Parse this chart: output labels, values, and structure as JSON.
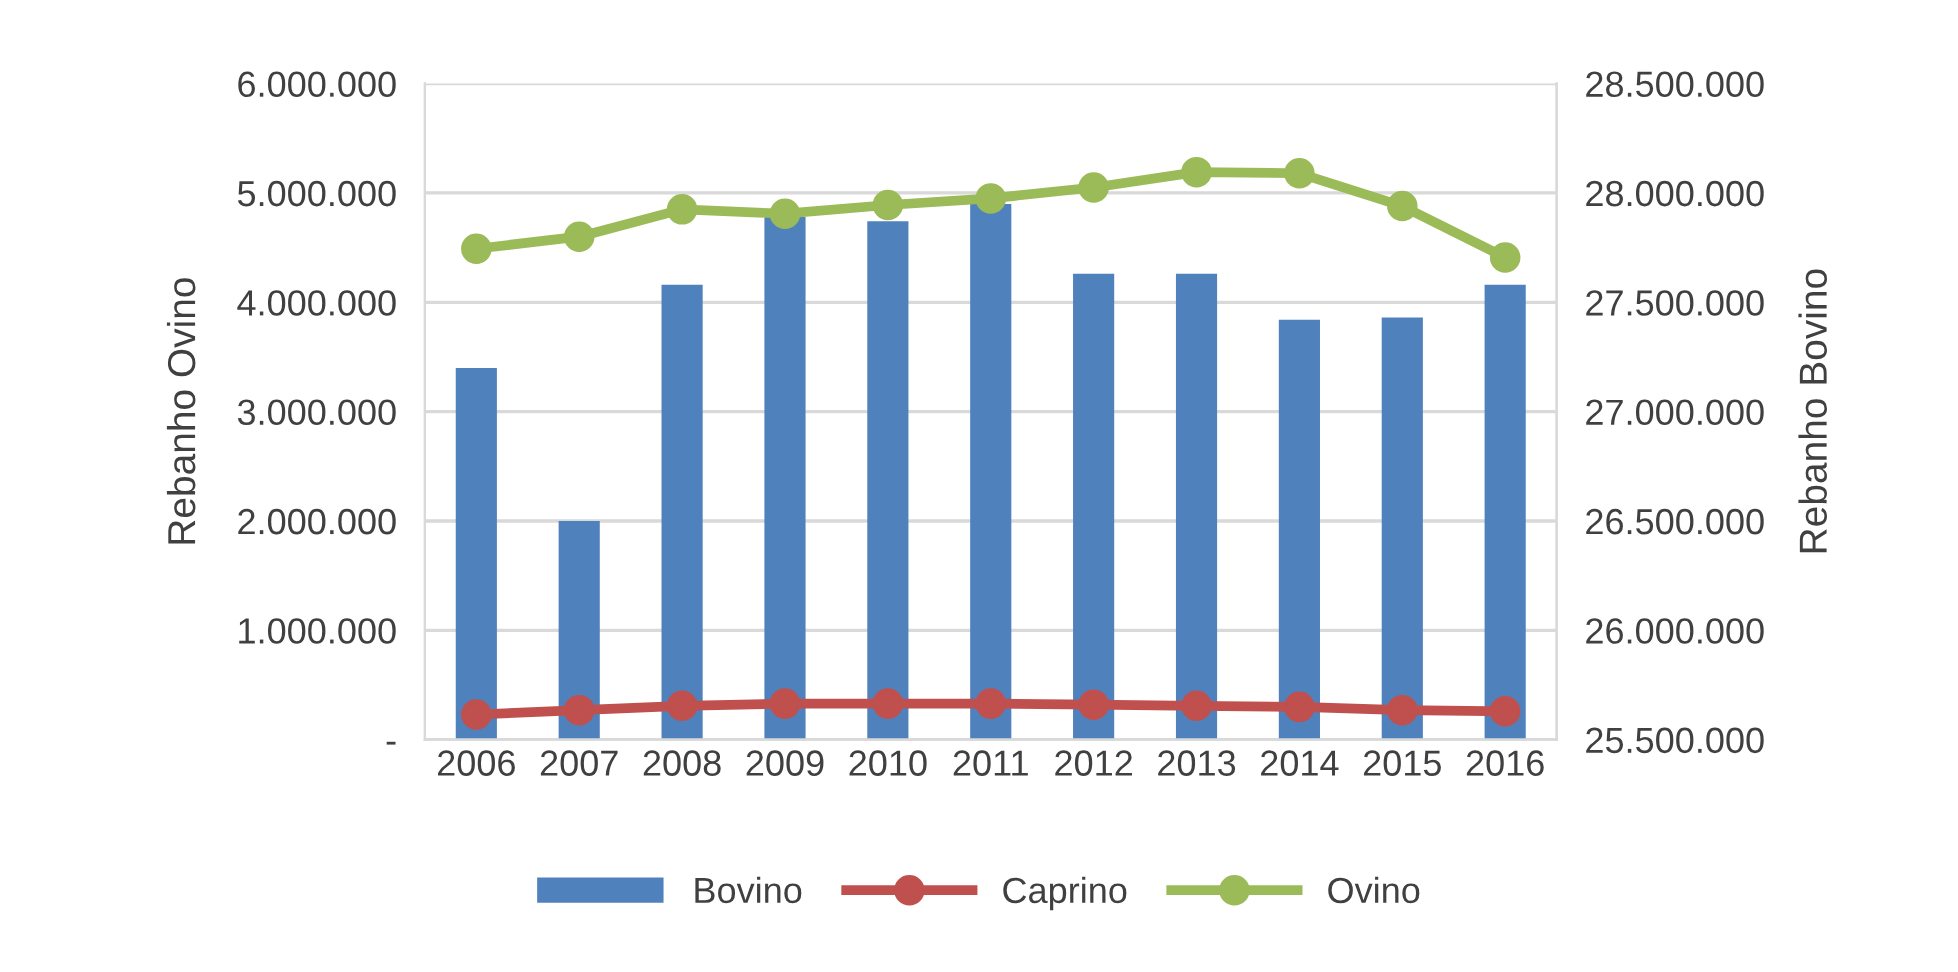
{
  "chart_data": {
    "type": "bar",
    "categories": [
      "2006",
      "2007",
      "2008",
      "2009",
      "2010",
      "2011",
      "2012",
      "2013",
      "2014",
      "2015",
      "2016"
    ],
    "ylabel": "Rebanho Ovino",
    "y2label": "Rebanho Bovino",
    "ylim": [
      0,
      6000000
    ],
    "yticks": [
      {
        "value": 0,
        "label": "-"
      },
      {
        "value": 1000000,
        "label": "1.000.000"
      },
      {
        "value": 2000000,
        "label": "2.000.000"
      },
      {
        "value": 3000000,
        "label": "3.000.000"
      },
      {
        "value": 4000000,
        "label": "4.000.000"
      },
      {
        "value": 5000000,
        "label": "5.000.000"
      },
      {
        "value": 6000000,
        "label": "6.000.000"
      }
    ],
    "y2lim": [
      25500000,
      28500000
    ],
    "y2ticks": [
      {
        "value": 25500000,
        "label": "25.500.000"
      },
      {
        "value": 26000000,
        "label": "26.000.000"
      },
      {
        "value": 26500000,
        "label": "26.500.000"
      },
      {
        "value": 27000000,
        "label": "27.000.000"
      },
      {
        "value": 27500000,
        "label": "27.500.000"
      },
      {
        "value": 28000000,
        "label": "28.000.000"
      },
      {
        "value": 28500000,
        "label": "28.500.000"
      }
    ],
    "series": [
      {
        "name": "Bovino",
        "axis": "y2",
        "color": "#4f81bd",
        "values": [
          27200000,
          26500000,
          27580000,
          27890000,
          27870000,
          27950000,
          27630000,
          27630000,
          27420000,
          27430000,
          27580000
        ]
      },
      {
        "name": "Caprino",
        "type": "line",
        "marker": "circle",
        "color": "#c0504d",
        "values": [
          230000,
          270000,
          310000,
          330000,
          330000,
          330000,
          320000,
          310000,
          300000,
          270000,
          260000
        ]
      },
      {
        "name": "Ovino",
        "type": "line",
        "marker": "circle",
        "color": "#9bbb59",
        "values": [
          4490000,
          4600000,
          4850000,
          4810000,
          4890000,
          4950000,
          5050000,
          5190000,
          5180000,
          4880000,
          4410000
        ]
      }
    ],
    "grid": "y",
    "legend": "bottom"
  }
}
